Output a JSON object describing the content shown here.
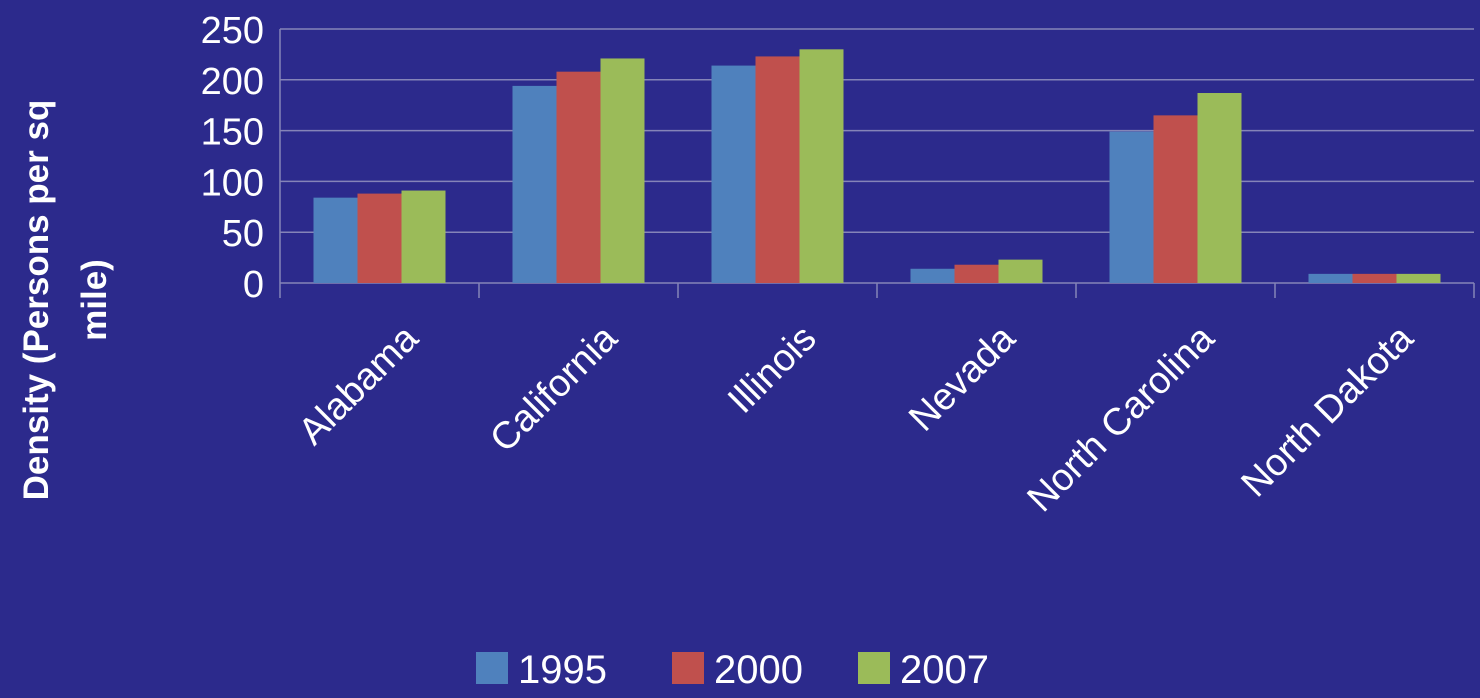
{
  "chart_data": {
    "type": "bar",
    "y_label": "Density (Persons per sq mile)",
    "categories": [
      "Alabama",
      "California",
      "Illinois",
      "Nevada",
      "North Carolina",
      "North Dakota"
    ],
    "series": [
      {
        "name": "1995",
        "color": "#4f81bd",
        "values": [
          84,
          194,
          214,
          14,
          149,
          9
        ]
      },
      {
        "name": "2000",
        "color": "#c0504d",
        "values": [
          88,
          208,
          223,
          18,
          165,
          9
        ]
      },
      {
        "name": "2007",
        "color": "#9bbb59",
        "values": [
          91,
          221,
          230,
          23,
          187,
          9
        ]
      }
    ],
    "ylim": [
      0,
      250
    ],
    "yticks": [
      0,
      50,
      100,
      150,
      200,
      250
    ],
    "grid": true,
    "legend": "bottom"
  }
}
